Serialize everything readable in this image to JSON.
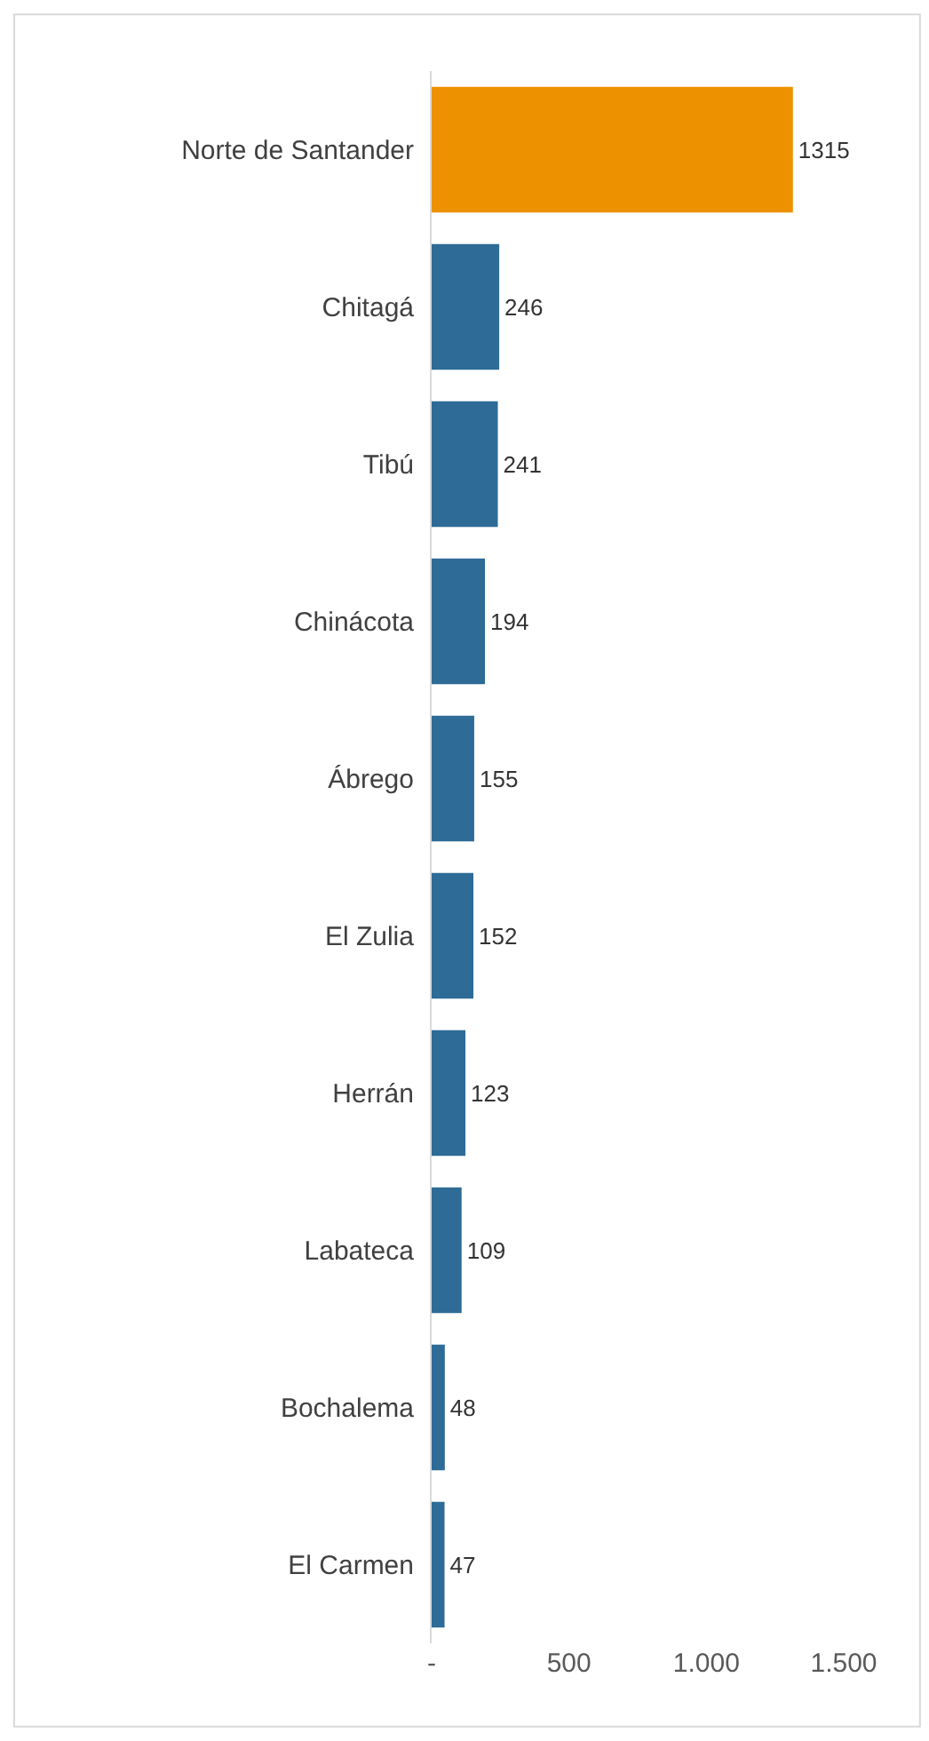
{
  "chart_data": {
    "type": "bar",
    "orientation": "horizontal",
    "categories": [
      "Norte de Santander",
      "Chitagá",
      "Tibú",
      "Chinácota",
      "Ábrego",
      "El Zulia",
      "Herrán",
      "Labateca",
      "Bochalema",
      "El Carmen"
    ],
    "values": [
      1315,
      246,
      241,
      194,
      155,
      152,
      123,
      109,
      48,
      47
    ],
    "colors": [
      "#ed9100",
      "#2e6b96",
      "#2e6b96",
      "#2e6b96",
      "#2e6b96",
      "#2e6b96",
      "#2e6b96",
      "#2e6b96",
      "#2e6b96",
      "#2e6b96"
    ],
    "xlim": [
      0,
      1500
    ],
    "xticks": [
      {
        "value": 0,
        "label": "-"
      },
      500,
      {
        "value": 1000,
        "label": "1.000"
      },
      {
        "value": 1500,
        "label": "1.500"
      }
    ],
    "data_labels": true,
    "legend": false
  }
}
